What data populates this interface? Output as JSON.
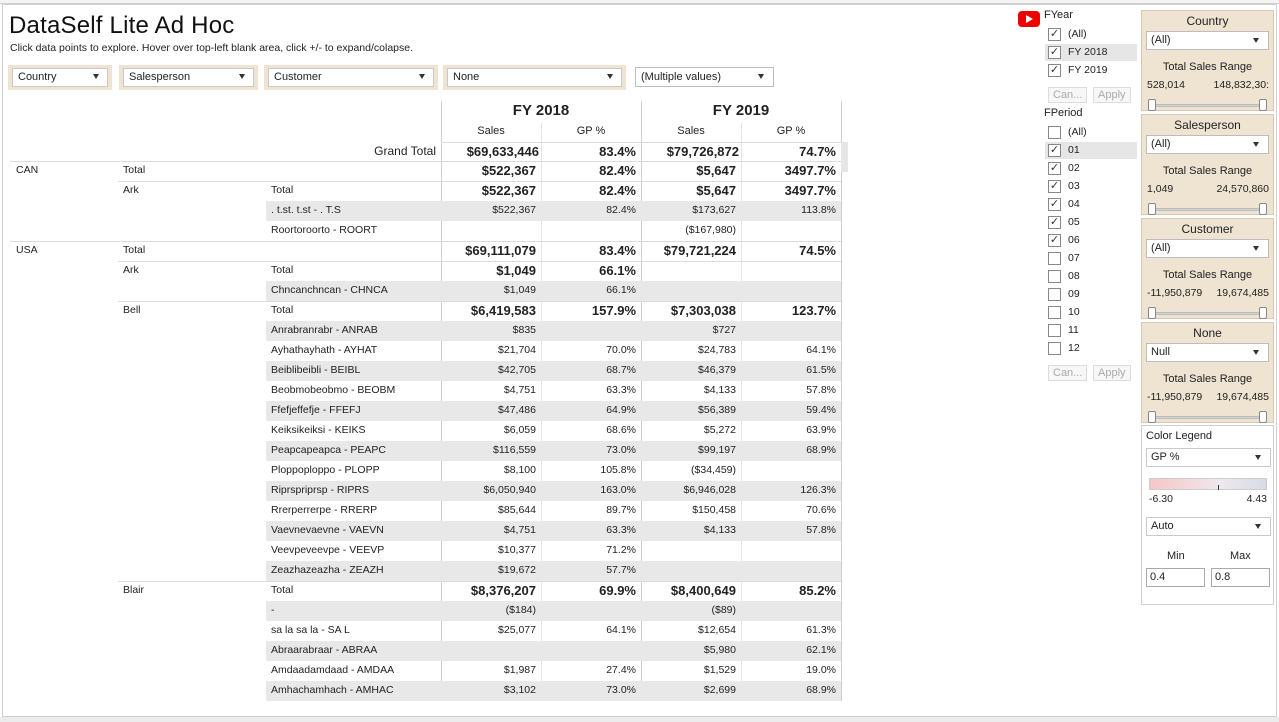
{
  "header": {
    "title": "DataSelf Lite Ad Hoc",
    "subtitle": "Click data points to explore. Hover over top-left blank area, click +/- to expand/colapse."
  },
  "filters": {
    "country": "Country",
    "salesperson": "Salesperson",
    "customer": "Customer",
    "none": "None",
    "measure": "(Multiple values)"
  },
  "table": {
    "years": [
      "FY 2018",
      "FY 2019"
    ],
    "col_sales": "Sales",
    "col_gp": "GP %",
    "grand_total": {
      "label": "Grand Total",
      "s18": "$69,633,446",
      "g18": "83.4%",
      "s19": "$79,726,872",
      "g19": "74.7%"
    },
    "rows": [
      {
        "c1": "CAN",
        "c2": "Total",
        "c3": "",
        "s18": "$522,367",
        "g18": "82.4%",
        "s19": "$5,647",
        "g19": "3497.7%",
        "bold": true
      },
      {
        "c1": "",
        "c2": "Ark",
        "c3": "Total",
        "s18": "$522,367",
        "g18": "82.4%",
        "s19": "$5,647",
        "g19": "3497.7%",
        "bold": true
      },
      {
        "c1": "",
        "c2": "",
        "c3": ". t.st. t.st - . T.S",
        "s18": "$522,367",
        "g18": "82.4%",
        "s19": "$173,627",
        "g19": "113.8%"
      },
      {
        "c1": "",
        "c2": "",
        "c3": "Roortoroorto - ROORT",
        "s18": "",
        "g18": "",
        "s19": "($167,980)",
        "g19": ""
      },
      {
        "c1": "USA",
        "c2": "Total",
        "c3": "",
        "s18": "$69,111,079",
        "g18": "83.4%",
        "s19": "$79,721,224",
        "g19": "74.5%",
        "bold": true
      },
      {
        "c1": "",
        "c2": "Ark",
        "c3": "Total",
        "s18": "$1,049",
        "g18": "66.1%",
        "s19": "",
        "g19": "",
        "bold": true
      },
      {
        "c1": "",
        "c2": "",
        "c3": "Chncanchncan - CHNCA",
        "s18": "$1,049",
        "g18": "66.1%",
        "s19": "",
        "g19": ""
      },
      {
        "c1": "",
        "c2": "Bell",
        "c3": "Total",
        "s18": "$6,419,583",
        "g18": "157.9%",
        "s19": "$7,303,038",
        "g19": "123.7%",
        "bold": true
      },
      {
        "c1": "",
        "c2": "",
        "c3": "Anrabranrabr - ANRAB",
        "s18": "$835",
        "g18": "",
        "s19": "$727",
        "g19": ""
      },
      {
        "c1": "",
        "c2": "",
        "c3": "Ayhathayhath - AYHAT",
        "s18": "$21,704",
        "g18": "70.0%",
        "s19": "$24,783",
        "g19": "64.1%"
      },
      {
        "c1": "",
        "c2": "",
        "c3": "Beiblibeibli - BEIBL",
        "s18": "$42,705",
        "g18": "68.7%",
        "s19": "$46,379",
        "g19": "61.5%"
      },
      {
        "c1": "",
        "c2": "",
        "c3": "Beobmobeobmo - BEOBM",
        "s18": "$4,751",
        "g18": "63.3%",
        "s19": "$4,133",
        "g19": "57.8%"
      },
      {
        "c1": "",
        "c2": "",
        "c3": "Ffefjeffefje - FFEFJ",
        "s18": "$47,486",
        "g18": "64.9%",
        "s19": "$56,389",
        "g19": "59.4%"
      },
      {
        "c1": "",
        "c2": "",
        "c3": "Keiksikeiksi - KEIKS",
        "s18": "$6,059",
        "g18": "68.6%",
        "s19": "$5,272",
        "g19": "63.9%"
      },
      {
        "c1": "",
        "c2": "",
        "c3": "Peapcapeapca - PEAPC",
        "s18": "$116,559",
        "g18": "73.0%",
        "s19": "$99,197",
        "g19": "68.9%"
      },
      {
        "c1": "",
        "c2": "",
        "c3": "Ploppoploppo - PLOPP",
        "s18": "$8,100",
        "g18": "105.8%",
        "s19": "($34,459)",
        "g19": ""
      },
      {
        "c1": "",
        "c2": "",
        "c3": "Riprspriprsp - RIPRS",
        "s18": "$6,050,940",
        "g18": "163.0%",
        "s19": "$6,946,028",
        "g19": "126.3%"
      },
      {
        "c1": "",
        "c2": "",
        "c3": "Rrerperrerpe - RRERP",
        "s18": "$85,644",
        "g18": "89.7%",
        "s19": "$150,458",
        "g19": "70.6%"
      },
      {
        "c1": "",
        "c2": "",
        "c3": "Vaevnevaevne - VAEVN",
        "s18": "$4,751",
        "g18": "63.3%",
        "s19": "$4,133",
        "g19": "57.8%"
      },
      {
        "c1": "",
        "c2": "",
        "c3": "Veevpeveevpe - VEEVP",
        "s18": "$10,377",
        "g18": "71.2%",
        "s19": "",
        "g19": ""
      },
      {
        "c1": "",
        "c2": "",
        "c3": "Zeazhazeazha - ZEAZH",
        "s18": "$19,672",
        "g18": "57.7%",
        "s19": "",
        "g19": ""
      },
      {
        "c1": "",
        "c2": "Blair",
        "c3": "Total",
        "s18": "$8,376,207",
        "g18": "69.9%",
        "s19": "$8,400,649",
        "g19": "85.2%",
        "bold": true
      },
      {
        "c1": "",
        "c2": "",
        "c3": "-",
        "s18": "($184)",
        "g18": "",
        "s19": "($89)",
        "g19": ""
      },
      {
        "c1": "",
        "c2": "",
        "c3": "sa la sa la -  SA L",
        "s18": "$25,077",
        "g18": "64.1%",
        "s19": "$12,654",
        "g19": "61.3%"
      },
      {
        "c1": "",
        "c2": "",
        "c3": "Abraarabraar - ABRAA",
        "s18": "",
        "g18": "",
        "s19": "$5,980",
        "g19": "62.1%"
      },
      {
        "c1": "",
        "c2": "",
        "c3": "Amdaadamdaad - AMDAA",
        "s18": "$1,987",
        "g18": "27.4%",
        "s19": "$1,529",
        "g19": "19.0%"
      },
      {
        "c1": "",
        "c2": "",
        "c3": "Amhachamhach - AMHAC",
        "s18": "$3,102",
        "g18": "73.0%",
        "s19": "$2,699",
        "g19": "68.9%"
      }
    ]
  },
  "fyear": {
    "title": "FYear",
    "items": [
      {
        "label": "(All)",
        "checked": true
      },
      {
        "label": "FY 2018",
        "checked": true,
        "selected": true
      },
      {
        "label": "FY 2019",
        "checked": true
      }
    ],
    "cancel": "Can...",
    "apply": "Apply"
  },
  "fperiod": {
    "title": "FPeriod",
    "items": [
      {
        "label": "(All)",
        "checked": false
      },
      {
        "label": "01",
        "checked": true,
        "selected": true
      },
      {
        "label": "02",
        "checked": true
      },
      {
        "label": "03",
        "checked": true
      },
      {
        "label": "04",
        "checked": true
      },
      {
        "label": "05",
        "checked": true
      },
      {
        "label": "06",
        "checked": true
      },
      {
        "label": "07",
        "checked": false
      },
      {
        "label": "08",
        "checked": false
      },
      {
        "label": "09",
        "checked": false
      },
      {
        "label": "10",
        "checked": false
      },
      {
        "label": "11",
        "checked": false
      },
      {
        "label": "12",
        "checked": false
      }
    ],
    "cancel": "Can...",
    "apply": "Apply"
  },
  "panels": [
    {
      "title": "Country",
      "value": "(All)",
      "range_label": "Total Sales Range",
      "min": "528,014",
      "max": "148,832,30:"
    },
    {
      "title": "Salesperson",
      "value": "(All)",
      "range_label": "Total Sales Range",
      "min": "1,049",
      "max": "24,570,860"
    },
    {
      "title": "Customer",
      "value": "(All)",
      "range_label": "Total Sales Range",
      "min": "-11,950,879",
      "max": "19,674,485"
    },
    {
      "title": "None",
      "value": "Null",
      "range_label": "Total Sales Range",
      "min": "-11,950,879",
      "max": "19,674,485"
    }
  ],
  "legend": {
    "title": "Color Legend",
    "measure": "GP %",
    "min_label": "-6.30",
    "max_label": "4.43",
    "mode": "Auto",
    "min_title": "Min",
    "max_title": "Max",
    "min_value": "0.4",
    "max_value": "0.8",
    "colors": {
      "low": "#f6c6c7",
      "high": "#d4dbe7"
    }
  }
}
